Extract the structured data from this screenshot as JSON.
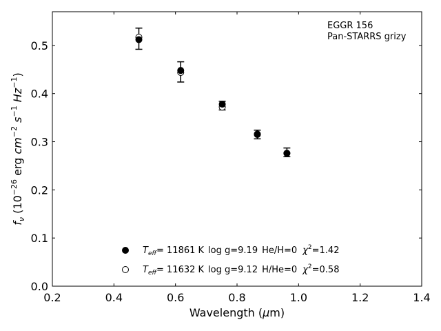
{
  "chart_data": {
    "type": "scatter",
    "xlabel_parts": {
      "main": "Wavelength (",
      "mu": "μ",
      "unit": "m)"
    },
    "ylabel_parts": {
      "f": "f",
      "nu": "ν",
      "open": " (10",
      "exp1": "−26",
      "erg": " erg ",
      "cm": "cm",
      "exp2": "−2",
      "s": " s",
      "exp3": "−1",
      "hz": " Hz",
      "exp4": "−1",
      "close": ")"
    },
    "xlim": [
      0.2,
      1.4
    ],
    "ylim": [
      0.0,
      0.57
    ],
    "xticks": [
      "0.2",
      "0.4",
      "0.6",
      "0.8",
      "1.0",
      "1.2",
      "1.4"
    ],
    "yticks": [
      "0.0",
      "0.1",
      "0.2",
      "0.3",
      "0.4",
      "0.5"
    ],
    "annotation": [
      "EGGR 156",
      "Pan-STARRS grizy"
    ],
    "observed": {
      "x": [
        0.481,
        0.617,
        0.752,
        0.866,
        0.962
      ],
      "y": [
        0.514,
        0.445,
        0.375,
        0.315,
        0.278
      ],
      "yerr": [
        0.022,
        0.021,
        0.009,
        0.009,
        0.009
      ]
    },
    "series": [
      {
        "marker": "filled",
        "x": [
          0.481,
          0.617,
          0.752,
          0.866,
          0.962
        ],
        "y": [
          0.512,
          0.448,
          0.378,
          0.315,
          0.276
        ],
        "legend": {
          "teff_sym": "T",
          "teff_sub": "eff",
          "teff_val": "= 11861 K",
          "logg": "log g=9.19",
          "comp": "He/H=0",
          "chi_sym": "χ",
          "chi_exp": "2",
          "chi_val": "=1.42"
        }
      },
      {
        "marker": "open",
        "x": [
          0.481,
          0.617,
          0.752,
          0.866,
          0.962
        ],
        "y": [
          0.517,
          0.444,
          0.372,
          0.316,
          0.276
        ],
        "legend": {
          "teff_sym": "T",
          "teff_sub": "eff",
          "teff_val": "= 11632 K",
          "logg": "log g=9.12",
          "comp": "H/He=0",
          "chi_sym": "χ",
          "chi_exp": "2",
          "chi_val": "=0.58"
        }
      }
    ],
    "legend_position": "lower-center",
    "grid": false
  }
}
